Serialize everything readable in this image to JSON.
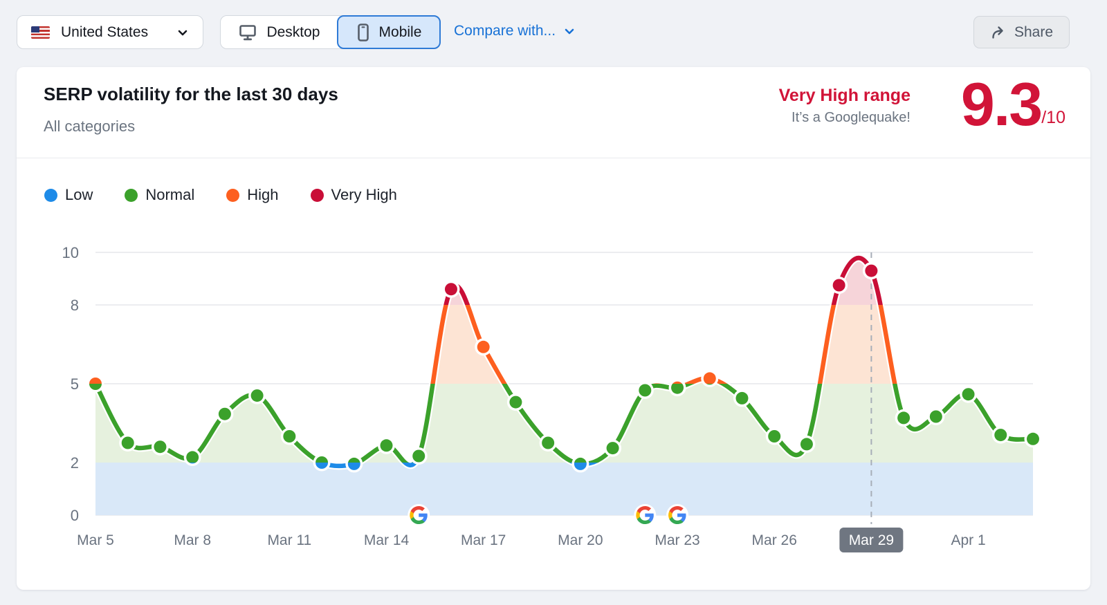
{
  "toolbar": {
    "country": {
      "label": "United States"
    },
    "device": {
      "desktop_label": "Desktop",
      "mobile_label": "Mobile",
      "selected": "Mobile"
    },
    "compare_label": "Compare with...",
    "share_label": "Share"
  },
  "header": {
    "title": "SERP volatility for the last 30 days",
    "subtitle": "All categories",
    "range_label": "Very High range",
    "range_note": "It’s a Googlequake!",
    "score": "9.3",
    "score_max": "/10",
    "accent_color": "#d11438"
  },
  "legend": {
    "items": [
      {
        "label": "Low",
        "color": "#1e8be8"
      },
      {
        "label": "Normal",
        "color": "#3ba12b"
      },
      {
        "label": "High",
        "color": "#fd5f1f"
      },
      {
        "label": "Very High",
        "color": "#c90e37"
      }
    ]
  },
  "chart_data": {
    "type": "line",
    "title": "SERP volatility for the last 30 days",
    "xlabel": "",
    "ylabel": "",
    "ylim": [
      0,
      10
    ],
    "y_ticks": [
      0,
      2,
      5,
      8,
      10
    ],
    "grid": true,
    "dates": [
      "Mar 5",
      "Mar 6",
      "Mar 7",
      "Mar 8",
      "Mar 9",
      "Mar 10",
      "Mar 11",
      "Mar 12",
      "Mar 13",
      "Mar 14",
      "Mar 15",
      "Mar 16",
      "Mar 17",
      "Mar 18",
      "Mar 19",
      "Mar 20",
      "Mar 21",
      "Mar 22",
      "Mar 23",
      "Mar 24",
      "Mar 25",
      "Mar 26",
      "Mar 27",
      "Mar 28",
      "Mar 29",
      "Mar 30",
      "Mar 31",
      "Apr 1",
      "Apr 2",
      "Apr 3"
    ],
    "values": [
      5.0,
      2.75,
      2.6,
      2.2,
      3.85,
      4.55,
      3.0,
      2.0,
      1.95,
      2.65,
      2.25,
      8.6,
      6.4,
      4.3,
      2.75,
      1.95,
      2.55,
      4.75,
      4.85,
      5.2,
      4.45,
      3.0,
      2.7,
      8.75,
      9.3,
      3.7,
      3.75,
      4.6,
      3.05,
      2.9
    ],
    "x_tick_every": 3,
    "selected_date": "Mar 29",
    "selected_value": 9.3,
    "google_update_dates": [
      "Mar 15",
      "Mar 22",
      "Mar 23"
    ],
    "bands": [
      {
        "name": "Low",
        "from": 0,
        "to": 2,
        "line_color": "#1e8be8",
        "fill_color": "#d9e8f8"
      },
      {
        "name": "Normal",
        "from": 2,
        "to": 5,
        "line_color": "#3ba12b",
        "fill_color": "#e6f1de"
      },
      {
        "name": "High",
        "from": 5,
        "to": 8,
        "line_color": "#fd5f1f",
        "fill_color": "#fde4d4"
      },
      {
        "name": "Very High",
        "from": 8,
        "to": 10,
        "line_color": "#c90e37",
        "fill_color": "#f6d4d9"
      }
    ],
    "grid_color": "#e5e7eb",
    "axis_text_color": "#6a7380",
    "selected_chip_bg": "#6f7681",
    "selected_chip_text": "#ffffff",
    "dashed_line_color": "#a7aeb8"
  }
}
